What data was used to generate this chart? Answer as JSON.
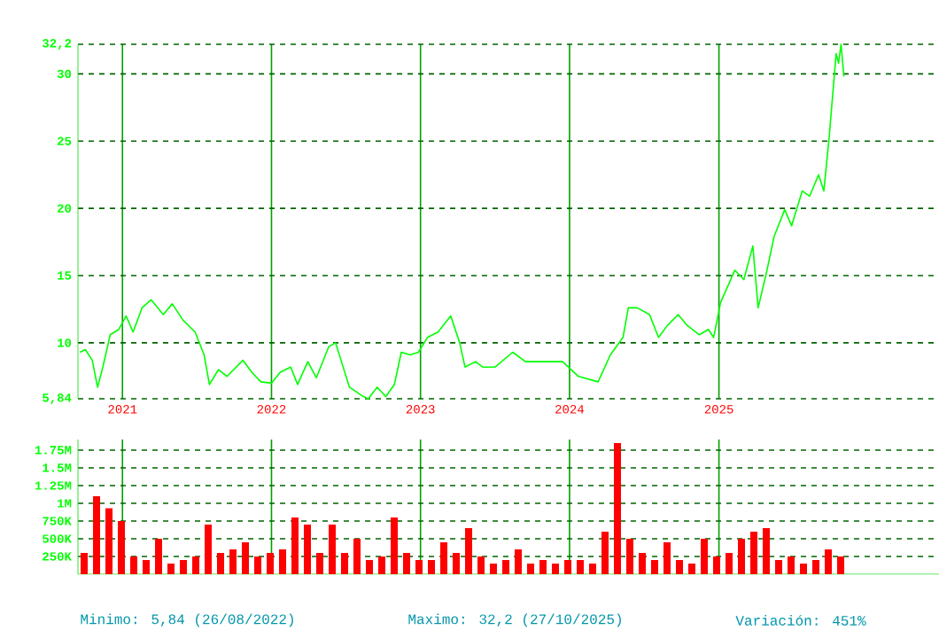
{
  "chart_data": [
    {
      "type": "line",
      "color": "#00ff00",
      "grid": true,
      "x": [
        "2020-09-19",
        "2020-10-02",
        "2020-10-19",
        "2020-11-01",
        "2020-11-14",
        "2020-12-02",
        "2020-12-23",
        "2021-01-10",
        "2021-01-27",
        "2021-02-18",
        "2021-03-12",
        "2021-04-11",
        "2021-05-03",
        "2021-05-29",
        "2021-06-28",
        "2021-07-20",
        "2021-08-02",
        "2021-08-24",
        "2021-09-14",
        "2021-10-23",
        "2021-11-14",
        "2021-12-06",
        "2022-01-01",
        "2022-01-22",
        "2022-02-17",
        "2022-03-06",
        "2022-03-31",
        "2022-04-21",
        "2022-05-21",
        "2022-06-07",
        "2022-07-11",
        "2022-08-14",
        "2022-08-26",
        "2022-09-17",
        "2022-10-08",
        "2022-10-29",
        "2022-11-15",
        "2022-12-06",
        "2022-12-27",
        "2023-01-18",
        "2023-02-13",
        "2023-03-16",
        "2023-04-07",
        "2023-04-20",
        "2023-05-16",
        "2023-06-02",
        "2023-07-03",
        "2023-08-15",
        "2023-09-15",
        "2023-10-28",
        "2023-12-15",
        "2024-01-23",
        "2024-03-11",
        "2024-04-10",
        "2024-05-11",
        "2024-05-24",
        "2024-06-15",
        "2024-07-15",
        "2024-08-06",
        "2024-08-28",
        "2024-09-23",
        "2024-10-15",
        "2024-11-14",
        "2024-12-06",
        "2024-12-19",
        "2025-01-05",
        "2025-02-09",
        "2025-03-03",
        "2025-03-25",
        "2025-04-07",
        "2025-04-28",
        "2025-05-16",
        "2025-06-11",
        "2025-06-28",
        "2025-07-24",
        "2025-08-11",
        "2025-09-02",
        "2025-09-15",
        "2025-09-28",
        "2025-10-15",
        "2025-10-21",
        "2025-10-27",
        "2025-11-03"
      ],
      "values": [
        9.3,
        9.5,
        8.7,
        6.7,
        8.2,
        10.6,
        11.0,
        12.0,
        10.8,
        12.6,
        13.2,
        12.1,
        12.9,
        11.7,
        10.8,
        9.1,
        6.9,
        8.0,
        7.5,
        8.7,
        7.8,
        7.1,
        7.0,
        7.8,
        8.2,
        6.9,
        8.6,
        7.4,
        9.7,
        10.0,
        6.7,
        6.0,
        5.84,
        6.7,
        6.0,
        6.9,
        9.3,
        9.1,
        9.3,
        10.4,
        10.8,
        12.0,
        10.0,
        8.2,
        8.6,
        8.2,
        8.2,
        9.3,
        8.6,
        8.6,
        8.6,
        7.5,
        7.1,
        9.1,
        10.4,
        12.6,
        12.6,
        12.1,
        10.4,
        11.3,
        12.1,
        11.3,
        10.6,
        11.0,
        10.4,
        13.0,
        15.4,
        14.7,
        17.2,
        12.6,
        15.3,
        17.9,
        19.9,
        18.7,
        21.3,
        20.9,
        22.5,
        21.3,
        25.3,
        31.5,
        30.8,
        32.2,
        29.8
      ],
      "xlim": [
        "2020-09-14",
        "2026-06-24"
      ],
      "xticks": [
        "2021",
        "2022",
        "2023",
        "2024",
        "2025"
      ],
      "ylim": [
        5.84,
        32.2
      ],
      "yticks": [
        {
          "value": 5.84,
          "label": "5,84"
        },
        {
          "value": 10,
          "label": "10"
        },
        {
          "value": 15,
          "label": "15"
        },
        {
          "value": 20,
          "label": "20"
        },
        {
          "value": 25,
          "label": "25"
        },
        {
          "value": 30,
          "label": "30"
        },
        {
          "value": 32.2,
          "label": "32,2"
        }
      ]
    },
    {
      "type": "bar",
      "color": "#ff0000",
      "grid": true,
      "tick_labels": "y",
      "categories": [
        null,
        null,
        null,
        null,
        null,
        null,
        null,
        null,
        null,
        null,
        null,
        null,
        null,
        null,
        null,
        null,
        null,
        null,
        null,
        null,
        null,
        null,
        null,
        null,
        null,
        null,
        null,
        null,
        null,
        null,
        null,
        null,
        null,
        null,
        null,
        null,
        null,
        null,
        null,
        null,
        null,
        null,
        null,
        null,
        null,
        null,
        null,
        null,
        null,
        null,
        null,
        null,
        null,
        null,
        null,
        null,
        null,
        null,
        null,
        null,
        null,
        null
      ],
      "values": [
        300000,
        1100000,
        930000,
        750000,
        250000,
        200000,
        500000,
        150000,
        200000,
        250000,
        700000,
        300000,
        350000,
        450000,
        250000,
        300000,
        350000,
        800000,
        700000,
        300000,
        700000,
        300000,
        500000,
        200000,
        250000,
        800000,
        300000,
        200000,
        200000,
        450000,
        300000,
        650000,
        250000,
        150000,
        200000,
        350000,
        150000,
        200000,
        150000,
        200000,
        200000,
        150000,
        600000,
        1850000,
        500000,
        300000,
        200000,
        450000,
        200000,
        150000,
        500000,
        250000,
        300000,
        500000,
        600000,
        650000,
        200000,
        250000,
        150000,
        200000,
        350000,
        250000
      ],
      "ylim": [
        0,
        1900000
      ],
      "yticks": [
        {
          "value": 250000,
          "label": "250K"
        },
        {
          "value": 500000,
          "label": "500K"
        },
        {
          "value": 750000,
          "label": "750K"
        },
        {
          "value": 1000000,
          "label": "1M"
        },
        {
          "value": 1250000,
          "label": "1.25M"
        },
        {
          "value": 1500000,
          "label": "1.5M"
        },
        {
          "value": 1750000,
          "label": "1.75M"
        }
      ],
      "annotations": [
        "Minimo: 5,84 (26/08/2022)",
        "Maximo: 32,2 (27/10/2025)",
        "Variación: 451%"
      ]
    }
  ]
}
